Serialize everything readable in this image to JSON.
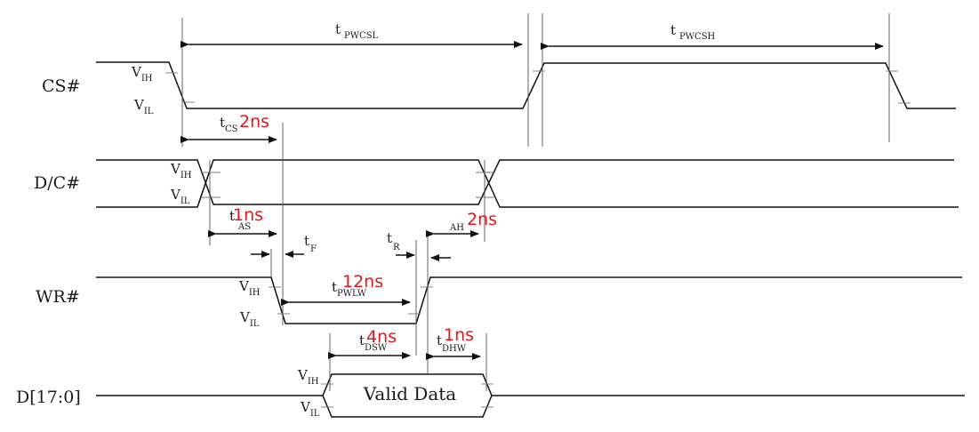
{
  "signals": {
    "cs": "CS#",
    "dc": "D/C#",
    "wr": "WR#",
    "data": "D[17:0]"
  },
  "levels": {
    "v": "V",
    "ih": "IH",
    "il": "IL"
  },
  "timings": {
    "pwcsl": {
      "t": "t",
      "sub": "PWCSL"
    },
    "pwcsh": {
      "t": "t",
      "sub": "PWCSH"
    },
    "cs": {
      "t": "t",
      "sub": "CS",
      "value": "2ns"
    },
    "as": {
      "t": "t",
      "sub": "AS",
      "value": "1ns"
    },
    "ah": {
      "sub": "AH",
      "value": "2ns"
    },
    "f": {
      "t": "t",
      "sub": "F"
    },
    "r": {
      "t": "t",
      "sub": "R"
    },
    "pwlw": {
      "t": "t",
      "sub": "PWLW",
      "value": "12ns"
    },
    "dsw": {
      "t": "t",
      "sub": "DSW",
      "value": "4ns"
    },
    "dhw": {
      "t": "t",
      "sub": "DHW",
      "value": "1ns"
    }
  },
  "valid_data": "Valid Data",
  "colors": {
    "annotation": "#e8151b",
    "line": "#111111"
  }
}
